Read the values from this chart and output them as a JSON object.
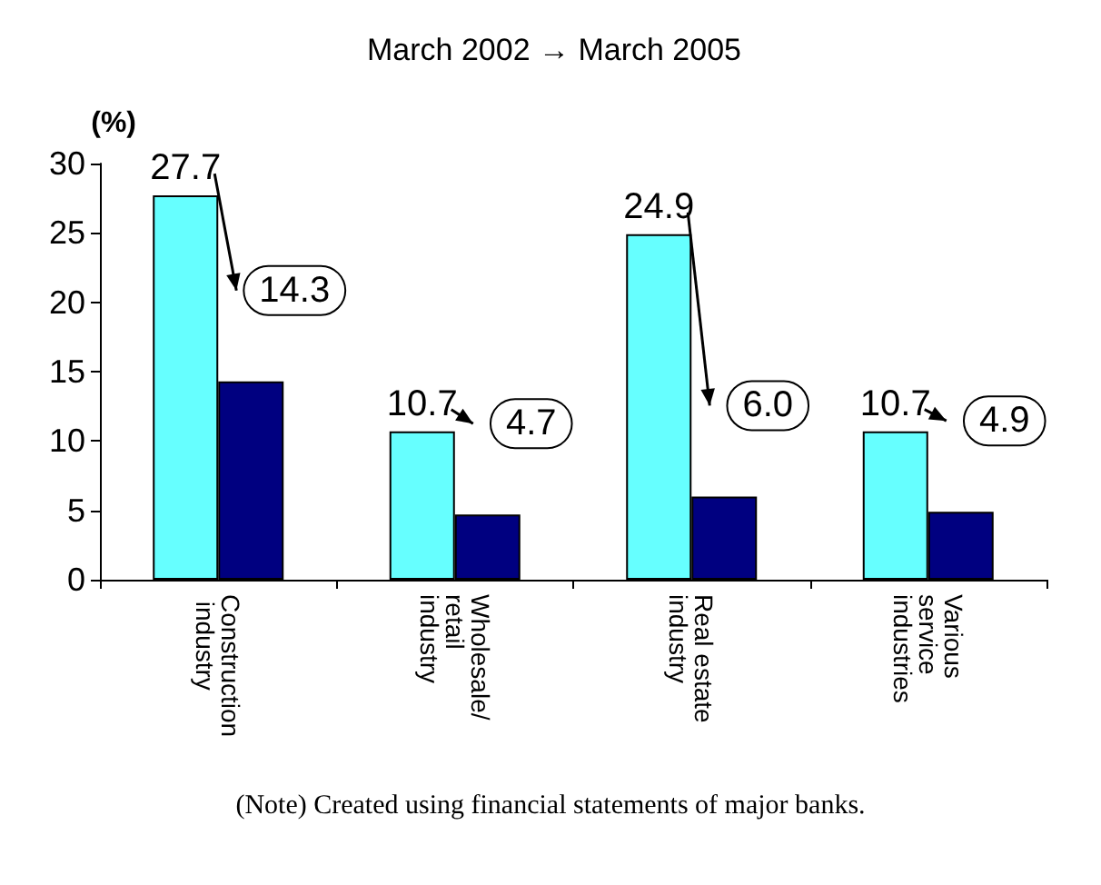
{
  "chart_data": {
    "type": "bar",
    "title": "March 2002 → March 2005",
    "ylabel": "(%)",
    "categories": [
      "Construction industry",
      "Wholesale/ retail industry",
      "Real estate industry",
      "Various service industries"
    ],
    "series": [
      {
        "color": "#66ffff",
        "values": [
          27.7,
          10.7,
          24.9,
          10.7
        ]
      },
      {
        "color": "#000080",
        "values": [
          14.3,
          4.7,
          6.0,
          4.9
        ]
      }
    ],
    "value_labels": [
      [
        "27.7",
        "10.7",
        "24.9",
        "10.7"
      ],
      [
        "14.3",
        "4.7",
        "6.0",
        "4.9"
      ]
    ],
    "ylim": [
      0,
      30
    ],
    "yticks": [
      0,
      5,
      10,
      15,
      20,
      25,
      30
    ],
    "grid": false,
    "annotations": [
      "(Note) Created using financial statements of major banks."
    ]
  }
}
